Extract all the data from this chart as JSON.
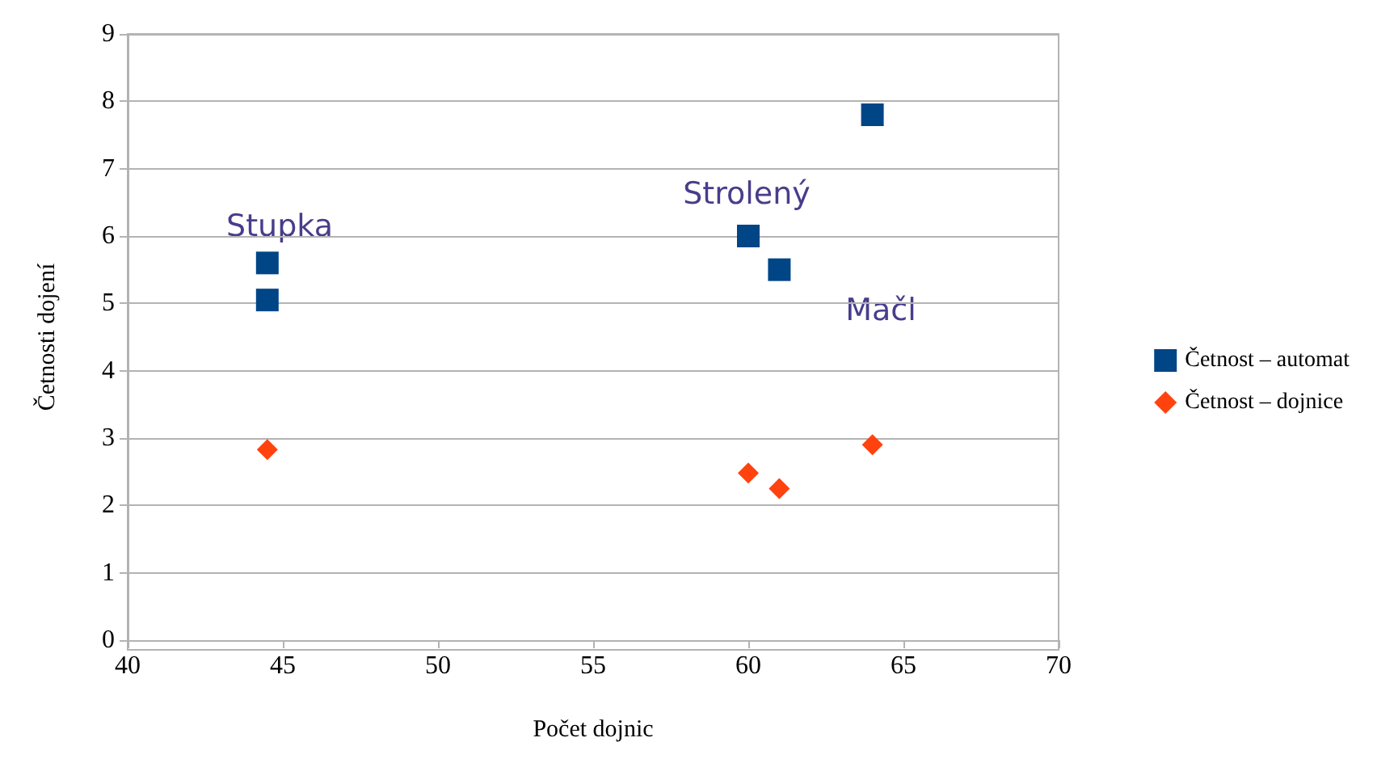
{
  "chart_data": {
    "type": "scatter",
    "xlabel": "Počet dojnic",
    "ylabel": "Četnosti dojení",
    "xlim": [
      40,
      70
    ],
    "xticks": [
      40,
      45,
      50,
      55,
      60,
      65,
      70
    ],
    "ylim": [
      0,
      9
    ],
    "yticks": [
      0,
      1,
      2,
      3,
      4,
      5,
      6,
      7,
      8,
      9
    ],
    "grid": "y",
    "legend": "right",
    "series": [
      {
        "name": "Četnost – automat",
        "color": "#004586",
        "marker": "square",
        "x": [
          44.5,
          44.5,
          60,
          61,
          64
        ],
        "values": [
          5.6,
          5.05,
          6.0,
          5.5,
          7.8
        ]
      },
      {
        "name": "Četnost – dojnice",
        "color": "#ff420e",
        "marker": "diamond",
        "x": [
          44.5,
          60,
          61,
          64
        ],
        "values": [
          2.83,
          2.48,
          2.25,
          2.9
        ]
      }
    ],
    "annotations": [
      "Stupka",
      "Strolený",
      "Mačl"
    ]
  }
}
